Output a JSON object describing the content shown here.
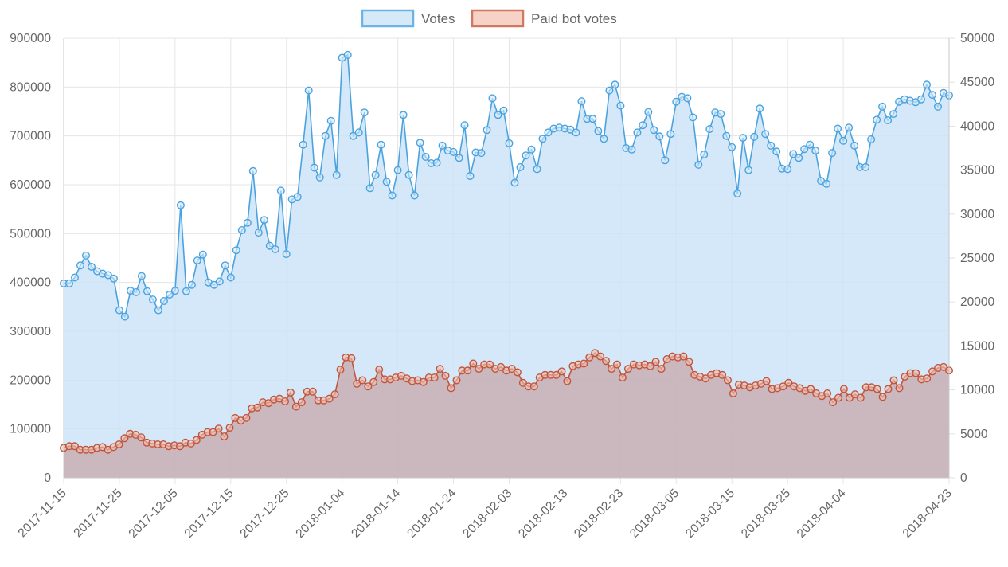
{
  "chart_data": {
    "type": "line",
    "title": "",
    "legend_position": "top",
    "grid": true,
    "legend": [
      {
        "label": "Votes",
        "fill": "#d6e9f8",
        "stroke": "#6db4e4"
      },
      {
        "label": "Paid bot votes",
        "fill": "#f6d3c6",
        "stroke": "#d07860"
      }
    ],
    "y_left": {
      "min": 0,
      "max": 900000,
      "ticks": [
        "0",
        "100000",
        "200000",
        "300000",
        "400000",
        "500000",
        "600000",
        "700000",
        "800000",
        "900000"
      ]
    },
    "y_right": {
      "min": 0,
      "max": 50000,
      "ticks": [
        "0",
        "5000",
        "10000",
        "15000",
        "20000",
        "25000",
        "30000",
        "35000",
        "40000",
        "45000",
        "50000"
      ]
    },
    "x_ticks": [
      "2017-11-15",
      "2017-11-25",
      "2017-12-05",
      "2017-12-15",
      "2017-12-25",
      "2018-01-04",
      "2018-01-14",
      "2018-01-24",
      "2018-02-03",
      "2018-02-13",
      "2018-02-23",
      "2018-03-05",
      "2018-03-15",
      "2018-03-25",
      "2018-04-04",
      "2018-04-23"
    ],
    "x_range": [
      "2017-11-15",
      "2018-04-23"
    ],
    "series": [
      {
        "name": "Votes",
        "axis": "left",
        "color": "#4aa3df",
        "fill": "rgba(201,226,247,0.8)",
        "values": [
          398000,
          398000,
          410000,
          435000,
          455000,
          432000,
          423000,
          418000,
          415000,
          408000,
          343000,
          330000,
          383000,
          380000,
          413000,
          382000,
          365000,
          343000,
          362000,
          375000,
          383000,
          558000,
          382000,
          395000,
          445000,
          457000,
          400000,
          395000,
          402000,
          435000,
          410000,
          466000,
          507000,
          522000,
          628000,
          502000,
          528000,
          475000,
          468000,
          588000,
          458000,
          570000,
          575000,
          682000,
          793000,
          635000,
          615000,
          700000,
          731000,
          620000,
          860000,
          866000,
          700000,
          707000,
          748000,
          593000,
          620000,
          682000,
          606000,
          578000,
          630000,
          743000,
          620000,
          578000,
          686000,
          657000,
          644000,
          645000,
          680000,
          670000,
          667000,
          655000,
          722000,
          618000,
          666000,
          665000,
          712000,
          777000,
          743000,
          752000,
          685000,
          604000,
          636000,
          660000,
          672000,
          632000,
          694000,
          707000,
          715000,
          717000,
          715000,
          713000,
          707000,
          771000,
          735000,
          735000,
          710000,
          694000,
          793000,
          805000,
          762000,
          675000,
          672000,
          707000,
          722000,
          749000,
          712000,
          699000,
          650000,
          704000,
          770000,
          780000,
          777000,
          738000,
          641000,
          662000,
          714000,
          748000,
          745000,
          700000,
          677000,
          582000,
          696000,
          630000,
          698000,
          756000,
          704000,
          680000,
          668000,
          633000,
          632000,
          663000,
          655000,
          673000,
          682000,
          670000,
          608000,
          602000,
          665000,
          715000,
          690000,
          717000,
          680000,
          636000,
          636000,
          693000,
          733000,
          760000,
          732000,
          745000,
          770000,
          775000,
          772000,
          769000,
          775000,
          805000,
          784000,
          760000,
          788000,
          783000
        ]
      },
      {
        "name": "Paid bot votes",
        "axis": "right",
        "color": "#c0553d",
        "fill": "rgba(200,170,175,0.8)",
        "values": [
          3400,
          3600,
          3600,
          3200,
          3200,
          3200,
          3400,
          3500,
          3200,
          3500,
          3800,
          4500,
          5000,
          4900,
          4600,
          4000,
          3900,
          3800,
          3800,
          3600,
          3700,
          3600,
          4000,
          3900,
          4300,
          4900,
          5200,
          5200,
          5600,
          4700,
          5700,
          6800,
          6500,
          6800,
          7900,
          8000,
          8600,
          8500,
          8900,
          9000,
          8700,
          9700,
          8100,
          8600,
          9800,
          9800,
          8800,
          8800,
          9000,
          9500,
          12300,
          13700,
          13600,
          10700,
          11100,
          10400,
          10900,
          12300,
          11200,
          11200,
          11400,
          11600,
          11300,
          11000,
          11100,
          10900,
          11400,
          11400,
          12400,
          11600,
          10200,
          11100,
          12200,
          12200,
          13000,
          12400,
          12900,
          12900,
          12400,
          12600,
          12200,
          12400,
          12000,
          10800,
          10400,
          10400,
          11400,
          11700,
          11700,
          11700,
          12100,
          11000,
          12700,
          12900,
          13000,
          13700,
          14200,
          13800,
          13300,
          12400,
          12900,
          11400,
          12400,
          12900,
          12800,
          12900,
          12700,
          13200,
          12400,
          13500,
          13800,
          13700,
          13800,
          13200,
          11700,
          11500,
          11300,
          11700,
          11900,
          11700,
          11100,
          9600,
          10600,
          10500,
          10300,
          10500,
          10700,
          11000,
          10100,
          10200,
          10400,
          10800,
          10400,
          10200,
          9900,
          10100,
          9600,
          9300,
          9600,
          8600,
          9100,
          10100,
          9100,
          9500,
          9100,
          10300,
          10300,
          10100,
          9200,
          10100,
          11100,
          10200,
          11500,
          11900,
          11900,
          11200,
          11300,
          12100,
          12500,
          12600,
          12200
        ],
        "end_value": 12200
      }
    ]
  }
}
